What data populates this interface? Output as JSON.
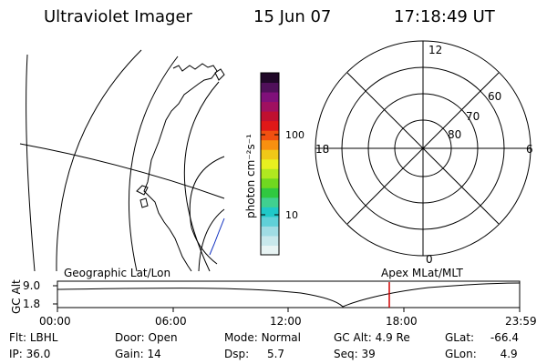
{
  "header": {
    "title": "Ultraviolet Imager",
    "date": "15 Jun 07",
    "time": "17:18:49 UT"
  },
  "geo_panel": {
    "label": "Geographic Lat/Lon"
  },
  "colorbar": {
    "unit_label": "photon cm⁻²s⁻¹",
    "ticks": [
      "100",
      "10"
    ],
    "colors": [
      "#e8f4f4",
      "#c8e8ec",
      "#a0dce4",
      "#60d0d8",
      "#20c8c8",
      "#40d090",
      "#30c840",
      "#70d820",
      "#b0e820",
      "#e8f020",
      "#f0c818",
      "#f89010",
      "#f05010",
      "#e01818",
      "#c01030",
      "#a01060",
      "#80107a",
      "#50105a",
      "#200828"
    ]
  },
  "polar_panel": {
    "label": "Apex MLat/MLT",
    "mlt_labels": {
      "top": "12",
      "bottom": "0",
      "left": "18",
      "right": "6"
    },
    "lat_labels": [
      "60",
      "70",
      "80"
    ]
  },
  "altitude_plot": {
    "ylabel": "GC Alt",
    "yticks": [
      "9.0",
      "1.8"
    ],
    "xticks": [
      "00:00",
      "06:00",
      "12:00",
      "18:00",
      "23:59"
    ],
    "marker_color": "#d00000"
  },
  "status": {
    "col1": [
      {
        "label": "Flt:",
        "value": "LBHL"
      },
      {
        "label": "IP:",
        "value": "36.0"
      }
    ],
    "col2": [
      {
        "label": "Door:",
        "value": "Open"
      },
      {
        "label": "Gain:",
        "value": "14"
      }
    ],
    "col3": [
      {
        "label": "Mode:",
        "value": "Normal"
      },
      {
        "label": "Dsp:",
        "value": "5.7"
      }
    ],
    "col4": [
      {
        "label": "GC Alt:",
        "value": "4.9 Re"
      },
      {
        "label": "Seq:",
        "value": "39"
      }
    ],
    "col5": [
      {
        "label": "GLat:",
        "value": "-66.4"
      },
      {
        "label": "GLon:",
        "value": "4.9"
      }
    ]
  }
}
